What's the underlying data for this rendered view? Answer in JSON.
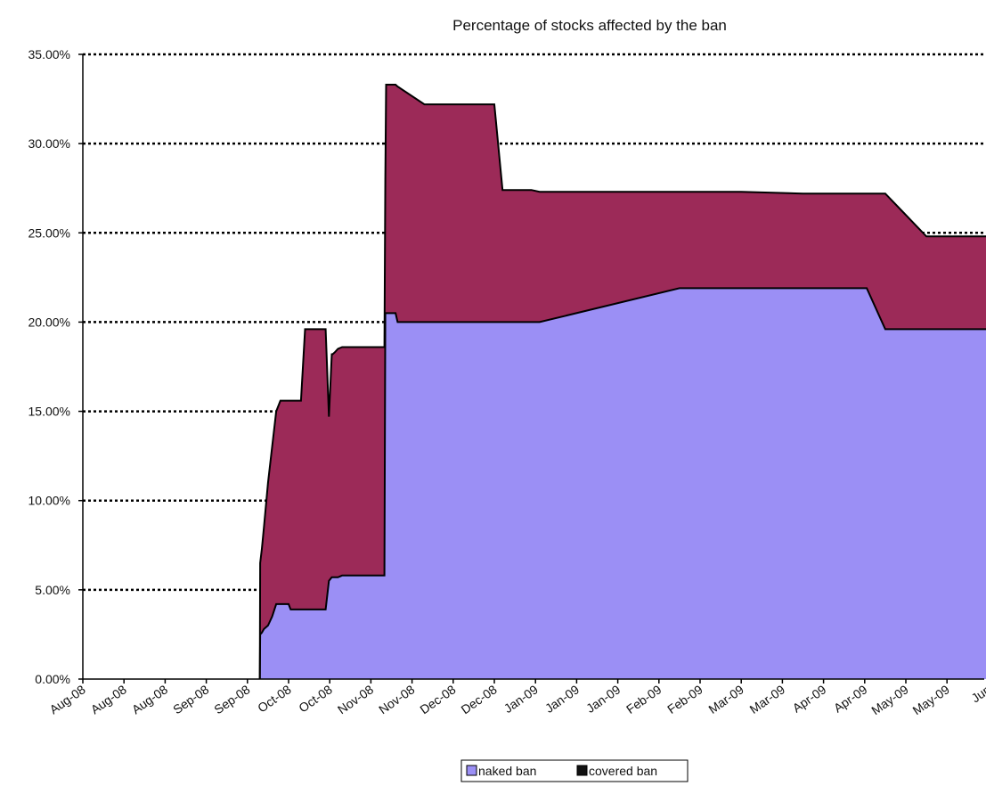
{
  "chart_data": {
    "type": "area",
    "title": "Percentage of stocks affected by the ban",
    "xlabel": "",
    "ylabel": "",
    "ylim": [
      0,
      0.35
    ],
    "x_range": [
      0,
      25
    ],
    "grid": "horizontal dotted",
    "legend_placement": "bottom",
    "y_ticks": [
      "0.00%",
      "5.00%",
      "10.00%",
      "15.00%",
      "20.00%",
      "25.00%",
      "30.00%",
      "35.00%"
    ],
    "x_ticks": [
      "Aug-08",
      "Aug-08",
      "Aug-08",
      "Sep-08",
      "Sep-08",
      "Oct-08",
      "Oct-08",
      "Nov-08",
      "Nov-08",
      "Dec-08",
      "Dec-08",
      "Jan-09",
      "Jan-09",
      "Jan-09",
      "Feb-09",
      "Feb-09",
      "Mar-09",
      "Mar-09",
      "Apr-09",
      "Apr-09",
      "May-09",
      "May-09",
      "Jun"
    ],
    "x": [
      4.3,
      4.31,
      4.35,
      4.4,
      4.5,
      4.6,
      4.7,
      4.8,
      5.0,
      5.05,
      5.3,
      5.4,
      5.45,
      5.5,
      5.9,
      5.98,
      6.05,
      6.07,
      6.12,
      6.2,
      6.3,
      6.8,
      7.33,
      7.35,
      7.37,
      7.6,
      7.65,
      8.3,
      8.35,
      8.45,
      10.0,
      10.2,
      10.5,
      10.9,
      11.1,
      14.5,
      16.0,
      17.5,
      19.0,
      19.05,
      19.5,
      20.5,
      21.8,
      22.1,
      22.2,
      23.0
    ],
    "series": [
      {
        "name": "naked ban",
        "color": "#9b8ff5",
        "values": [
          0.0,
          0.025,
          0.026,
          0.028,
          0.03,
          0.035,
          0.042,
          0.042,
          0.042,
          0.039,
          0.039,
          0.039,
          0.039,
          0.039,
          0.039,
          0.055,
          0.057,
          0.057,
          0.057,
          0.057,
          0.058,
          0.058,
          0.058,
          0.205,
          0.205,
          0.205,
          0.2,
          0.2,
          0.2,
          0.2,
          0.2,
          0.2,
          0.2,
          0.2,
          0.2,
          0.219,
          0.219,
          0.219,
          0.219,
          0.219,
          0.196,
          0.196,
          0.196,
          0.196,
          0.196,
          0.196
        ]
      },
      {
        "name": "covered ban",
        "color": "#9c2a58",
        "values": [
          0.0,
          0.065,
          0.073,
          0.085,
          0.11,
          0.13,
          0.15,
          0.156,
          0.156,
          0.156,
          0.156,
          0.196,
          0.196,
          0.196,
          0.196,
          0.147,
          0.182,
          0.182,
          0.183,
          0.185,
          0.186,
          0.186,
          0.186,
          0.28,
          0.333,
          0.333,
          0.332,
          0.322,
          0.322,
          0.322,
          0.322,
          0.274,
          0.274,
          0.274,
          0.273,
          0.273,
          0.273,
          0.272,
          0.272,
          0.272,
          0.272,
          0.248,
          0.248,
          0.248,
          0.248,
          0.238
        ]
      }
    ]
  }
}
